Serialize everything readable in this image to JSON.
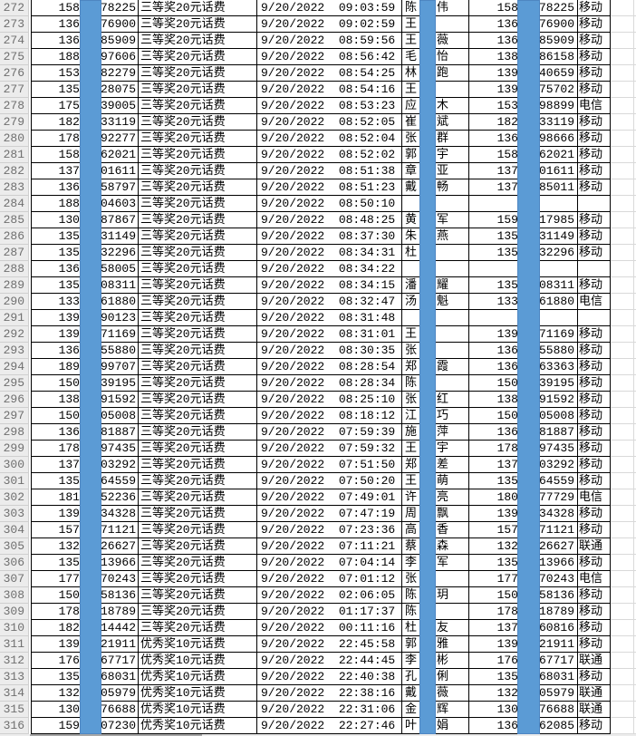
{
  "sheet": {
    "description": "prize redemption spreadsheet rows 272-316",
    "first_row_number": 272,
    "last_row_number": 316
  },
  "colors": {
    "redaction_blue": "#5b9bd5",
    "redaction_border": "#4e86c2",
    "row_header_bg": "#ececec",
    "row_header_text": "#6f6f6f",
    "grid_border": "#000000",
    "faint_gridline": "#d9d9d9"
  },
  "rows": [
    {
      "n": "272",
      "p1a": "158",
      "p1b": "78225",
      "prize": "三等奖20元话费",
      "dt": "9/20/2022  09:03:59",
      "na": "陈",
      "nb": "伟",
      "p2a": "158",
      "p2b": "78225",
      "car": "移动"
    },
    {
      "n": "273",
      "p1a": "136",
      "p1b": "76900",
      "prize": "三等奖20元话费",
      "dt": "9/20/2022  09:02:59",
      "na": "王",
      "nb": "",
      "p2a": "136",
      "p2b": "76900",
      "car": "移动"
    },
    {
      "n": "274",
      "p1a": "136",
      "p1b": "85909",
      "prize": "三等奖20元话费",
      "dt": "9/20/2022  08:59:56",
      "na": "王",
      "nb": "薇",
      "p2a": "136",
      "p2b": "85909",
      "car": "移动"
    },
    {
      "n": "275",
      "p1a": "188",
      "p1b": "97606",
      "prize": "三等奖20元话费",
      "dt": "9/20/2022  08:56:42",
      "na": "毛",
      "nb": "怡",
      "p2a": "138",
      "p2b": "86158",
      "car": "移动"
    },
    {
      "n": "276",
      "p1a": "153",
      "p1b": "82279",
      "prize": "三等奖20元话费",
      "dt": "9/20/2022  08:54:25",
      "na": "林",
      "nb": "跑",
      "p2a": "139",
      "p2b": "40659",
      "car": "移动"
    },
    {
      "n": "277",
      "p1a": "135",
      "p1b": "28075",
      "prize": "三等奖20元话费",
      "dt": "9/20/2022  08:54:16",
      "na": "王",
      "nb": "",
      "p2a": "139",
      "p2b": "75702",
      "car": "移动"
    },
    {
      "n": "278",
      "p1a": "175",
      "p1b": "39005",
      "prize": "三等奖20元话费",
      "dt": "9/20/2022  08:53:23",
      "na": "应",
      "nb": "木",
      "p2a": "153",
      "p2b": "98899",
      "car": "电信"
    },
    {
      "n": "279",
      "p1a": "182",
      "p1b": "33119",
      "prize": "三等奖20元话费",
      "dt": "9/20/2022  08:52:05",
      "na": "崔",
      "nb": "斌",
      "p2a": "182",
      "p2b": "33119",
      "car": "移动"
    },
    {
      "n": "280",
      "p1a": "178",
      "p1b": "92277",
      "prize": "三等奖20元话费",
      "dt": "9/20/2022  08:52:04",
      "na": "张",
      "nb": "群",
      "p2a": "136",
      "p2b": "98666",
      "car": "移动"
    },
    {
      "n": "281",
      "p1a": "158",
      "p1b": "62021",
      "prize": "三等奖20元话费",
      "dt": "9/20/2022  08:52:02",
      "na": "郭",
      "nb": "宇",
      "p2a": "158",
      "p2b": "62021",
      "car": "移动"
    },
    {
      "n": "282",
      "p1a": "137",
      "p1b": "01611",
      "prize": "三等奖20元话费",
      "dt": "9/20/2022  08:51:38",
      "na": "章",
      "nb": "亚",
      "p2a": "137",
      "p2b": "01611",
      "car": "移动"
    },
    {
      "n": "283",
      "p1a": "136",
      "p1b": "58797",
      "prize": "三等奖20元话费",
      "dt": "9/20/2022  08:51:23",
      "na": "戴",
      "nb": "畅",
      "p2a": "137",
      "p2b": "85011",
      "car": "移动"
    },
    {
      "n": "284",
      "p1a": "188",
      "p1b": "04603",
      "prize": "三等奖20元话费",
      "dt": "9/20/2022  08:50:10",
      "na": "",
      "nb": "",
      "p2a": "",
      "p2b": "",
      "car": ""
    },
    {
      "n": "285",
      "p1a": "130",
      "p1b": "87867",
      "prize": "三等奖20元话费",
      "dt": "9/20/2022  08:48:25",
      "na": "黄",
      "nb": "军",
      "p2a": "159",
      "p2b": "17985",
      "car": "移动"
    },
    {
      "n": "286",
      "p1a": "135",
      "p1b": "31149",
      "prize": "三等奖20元话费",
      "dt": "9/20/2022  08:37:30",
      "na": "朱",
      "nb": "燕",
      "p2a": "135",
      "p2b": "31149",
      "car": "移动"
    },
    {
      "n": "287",
      "p1a": "135",
      "p1b": "32296",
      "prize": "三等奖20元话费",
      "dt": "9/20/2022  08:34:31",
      "na": "杜",
      "nb": "",
      "p2a": "135",
      "p2b": "32296",
      "car": "移动"
    },
    {
      "n": "288",
      "p1a": "136",
      "p1b": "58005",
      "prize": "三等奖20元话费",
      "dt": "9/20/2022  08:34:22",
      "na": "",
      "nb": "",
      "p2a": "",
      "p2b": "",
      "car": ""
    },
    {
      "n": "289",
      "p1a": "135",
      "p1b": "08311",
      "prize": "三等奖20元话费",
      "dt": "9/20/2022  08:34:15",
      "na": "潘",
      "nb": "耀",
      "p2a": "135",
      "p2b": "08311",
      "car": "移动"
    },
    {
      "n": "290",
      "p1a": "133",
      "p1b": "61880",
      "prize": "三等奖20元话费",
      "dt": "9/20/2022  08:32:47",
      "na": "汤",
      "nb": "魁",
      "p2a": "133",
      "p2b": "61880",
      "car": "电信"
    },
    {
      "n": "291",
      "p1a": "139",
      "p1b": "90123",
      "prize": "三等奖20元话费",
      "dt": "9/20/2022  08:31:48",
      "na": "",
      "nb": "",
      "p2a": "",
      "p2b": "",
      "car": ""
    },
    {
      "n": "292",
      "p1a": "139",
      "p1b": "71169",
      "prize": "三等奖20元话费",
      "dt": "9/20/2022  08:31:01",
      "na": "王",
      "nb": "",
      "p2a": "139",
      "p2b": "71169",
      "car": "移动"
    },
    {
      "n": "293",
      "p1a": "136",
      "p1b": "55880",
      "prize": "三等奖20元话费",
      "dt": "9/20/2022  08:30:35",
      "na": "张",
      "nb": "",
      "p2a": "136",
      "p2b": "55880",
      "car": "移动"
    },
    {
      "n": "294",
      "p1a": "189",
      "p1b": "99707",
      "prize": "三等奖20元话费",
      "dt": "9/20/2022  08:28:54",
      "na": "郑",
      "nb": "霞",
      "p2a": "136",
      "p2b": "63363",
      "car": "移动"
    },
    {
      "n": "295",
      "p1a": "150",
      "p1b": "39195",
      "prize": "三等奖20元话费",
      "dt": "9/20/2022  08:28:34",
      "na": "陈",
      "nb": "",
      "p2a": "150",
      "p2b": "39195",
      "car": "移动"
    },
    {
      "n": "296",
      "p1a": "138",
      "p1b": "91592",
      "prize": "三等奖20元话费",
      "dt": "9/20/2022  08:25:10",
      "na": "张",
      "nb": "红",
      "p2a": "138",
      "p2b": "91592",
      "car": "移动"
    },
    {
      "n": "297",
      "p1a": "150",
      "p1b": "05008",
      "prize": "三等奖20元话费",
      "dt": "9/20/2022  08:18:12",
      "na": "江",
      "nb": "巧",
      "p2a": "150",
      "p2b": "05008",
      "car": "移动"
    },
    {
      "n": "298",
      "p1a": "136",
      "p1b": "81887",
      "prize": "三等奖20元话费",
      "dt": "9/20/2022  07:59:39",
      "na": "施",
      "nb": "萍",
      "p2a": "136",
      "p2b": "81887",
      "car": "移动"
    },
    {
      "n": "299",
      "p1a": "178",
      "p1b": "97435",
      "prize": "三等奖20元话费",
      "dt": "9/20/2022  07:59:32",
      "na": "王",
      "nb": "宇",
      "p2a": "178",
      "p2b": "97435",
      "car": "移动"
    },
    {
      "n": "300",
      "p1a": "137",
      "p1b": "03292",
      "prize": "三等奖20元话费",
      "dt": "9/20/2022  07:51:50",
      "na": "郑",
      "nb": "差",
      "p2a": "137",
      "p2b": "03292",
      "car": "移动"
    },
    {
      "n": "301",
      "p1a": "135",
      "p1b": "64559",
      "prize": "三等奖20元话费",
      "dt": "9/20/2022  07:50:20",
      "na": "王",
      "nb": "萌",
      "p2a": "135",
      "p2b": "64559",
      "car": "移动"
    },
    {
      "n": "302",
      "p1a": "181",
      "p1b": "52236",
      "prize": "三等奖20元话费",
      "dt": "9/20/2022  07:49:01",
      "na": "许",
      "nb": "亮",
      "p2a": "180",
      "p2b": "77729",
      "car": "电信"
    },
    {
      "n": "303",
      "p1a": "139",
      "p1b": "34328",
      "prize": "三等奖20元话费",
      "dt": "9/20/2022  07:47:19",
      "na": "周",
      "nb": "飘",
      "p2a": "139",
      "p2b": "34328",
      "car": "移动"
    },
    {
      "n": "304",
      "p1a": "157",
      "p1b": "71121",
      "prize": "三等奖20元话费",
      "dt": "9/20/2022  07:23:36",
      "na": "高",
      "nb": "香",
      "p2a": "157",
      "p2b": "71121",
      "car": "移动"
    },
    {
      "n": "305",
      "p1a": "132",
      "p1b": "26627",
      "prize": "三等奖20元话费",
      "dt": "9/20/2022  07:11:21",
      "na": "蔡",
      "nb": "森",
      "p2a": "132",
      "p2b": "26627",
      "car": "联通"
    },
    {
      "n": "306",
      "p1a": "135",
      "p1b": "13966",
      "prize": "三等奖20元话费",
      "dt": "9/20/2022  07:04:14",
      "na": "李",
      "nb": "军",
      "p2a": "135",
      "p2b": "13966",
      "car": "移动"
    },
    {
      "n": "307",
      "p1a": "177",
      "p1b": "70243",
      "prize": "三等奖20元话费",
      "dt": "9/20/2022  07:01:12",
      "na": "张",
      "nb": "",
      "p2a": "177",
      "p2b": "70243",
      "car": "电信"
    },
    {
      "n": "308",
      "p1a": "150",
      "p1b": "58136",
      "prize": "三等奖20元话费",
      "dt": "9/20/2022  02:06:05",
      "na": "陈",
      "nb": "玥",
      "p2a": "150",
      "p2b": "58136",
      "car": "移动"
    },
    {
      "n": "309",
      "p1a": "178",
      "p1b": "18789",
      "prize": "三等奖20元话费",
      "dt": "9/20/2022  01:17:37",
      "na": "陈",
      "nb": "",
      "p2a": "178",
      "p2b": "18789",
      "car": "移动"
    },
    {
      "n": "310",
      "p1a": "182",
      "p1b": "14442",
      "prize": "三等奖20元话费",
      "dt": "9/20/2022  00:11:16",
      "na": "杜",
      "nb": "友",
      "p2a": "137",
      "p2b": "60816",
      "car": "移动"
    },
    {
      "n": "311",
      "p1a": "139",
      "p1b": "21911",
      "prize": "优秀奖10元话费",
      "dt": "9/20/2022  22:45:58",
      "na": "郭",
      "nb": "雅",
      "p2a": "139",
      "p2b": "21911",
      "car": "移动"
    },
    {
      "n": "312",
      "p1a": "176",
      "p1b": "67717",
      "prize": "优秀奖10元话费",
      "dt": "9/20/2022  22:44:45",
      "na": "李",
      "nb": "彬",
      "p2a": "176",
      "p2b": "67717",
      "car": "联通"
    },
    {
      "n": "313",
      "p1a": "135",
      "p1b": "68031",
      "prize": "优秀奖10元话费",
      "dt": "9/20/2022  22:40:38",
      "na": "孔",
      "nb": "俐",
      "p2a": "135",
      "p2b": "68031",
      "car": "移动"
    },
    {
      "n": "314",
      "p1a": "132",
      "p1b": "05979",
      "prize": "优秀奖10元话费",
      "dt": "9/20/2022  22:38:16",
      "na": "戴",
      "nb": "薇",
      "p2a": "132",
      "p2b": "05979",
      "car": "联通"
    },
    {
      "n": "315",
      "p1a": "130",
      "p1b": "76688",
      "prize": "优秀奖10元话费",
      "dt": "9/20/2022  22:31:06",
      "na": "金",
      "nb": "辉",
      "p2a": "130",
      "p2b": "76688",
      "car": "联通"
    },
    {
      "n": "316",
      "p1a": "159",
      "p1b": "07230",
      "prize": "优秀奖10元话费",
      "dt": "9/20/2022  22:27:46",
      "na": "叶",
      "nb": "娟",
      "p2a": "136",
      "p2b": "62085",
      "car": "移动"
    }
  ]
}
